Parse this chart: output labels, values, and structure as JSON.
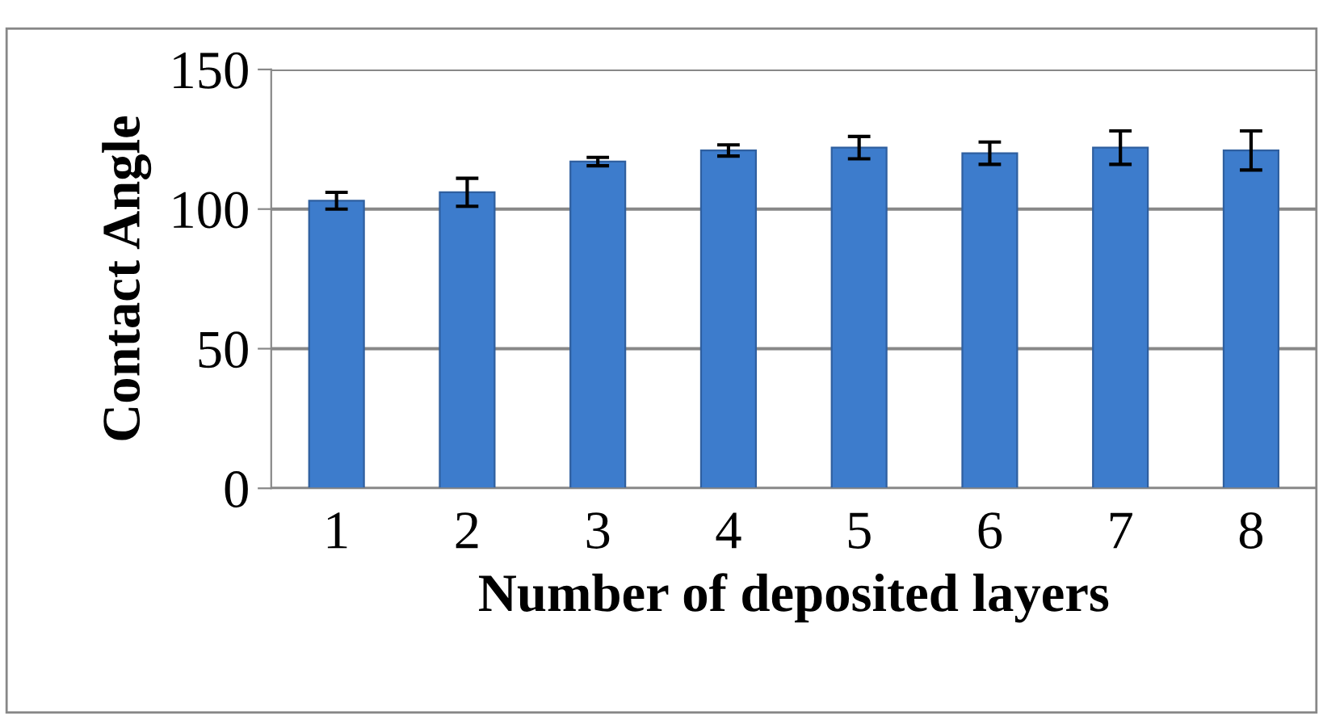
{
  "chart_data": {
    "type": "bar",
    "xlabel": "Number of deposited layers",
    "ylabel": "Contact Angle",
    "categories": [
      "1",
      "2",
      "3",
      "4",
      "5",
      "6",
      "7",
      "8"
    ],
    "values": [
      103,
      106,
      117,
      121,
      122,
      120,
      122,
      121
    ],
    "errors": [
      3,
      5,
      1.5,
      2,
      4,
      4,
      6,
      7
    ],
    "color": "#3d7ccc",
    "ylim": [
      0,
      150
    ],
    "yticks": [
      0,
      50,
      100,
      150
    ],
    "grid": "y"
  }
}
